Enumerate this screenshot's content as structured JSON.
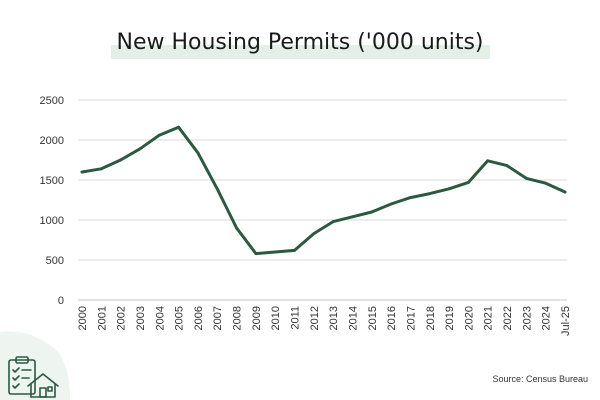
{
  "title": "New Housing Permits ('000 units)",
  "source": "Source: Census Bureau",
  "colors": {
    "line": "#2b5a41",
    "grid": "#d9d9d9",
    "title_highlight": "#e3efe7",
    "logo": "#2b5a41"
  },
  "icons": {
    "logo": "checklist-house-icon"
  },
  "chart_data": {
    "type": "line",
    "title": "New Housing Permits ('000 units)",
    "xlabel": "",
    "ylabel": "",
    "ylim": [
      0,
      2500
    ],
    "yticks": [
      0,
      500,
      1000,
      1500,
      2000,
      2500
    ],
    "grid": true,
    "categories": [
      "2000",
      "2001",
      "2002",
      "2003",
      "2004",
      "2005",
      "2006",
      "2007",
      "2008",
      "2009",
      "2010",
      "2011",
      "2012",
      "2013",
      "2014",
      "2015",
      "2016",
      "2017",
      "2018",
      "2019",
      "2020",
      "2021",
      "2022",
      "2023",
      "2024",
      "Jul-25"
    ],
    "series": [
      {
        "name": "",
        "values": [
          1600,
          1640,
          1750,
          1890,
          2060,
          2160,
          1840,
          1390,
          900,
          580,
          600,
          620,
          830,
          980,
          1040,
          1100,
          1200,
          1280,
          1330,
          1390,
          1470,
          1740,
          1680,
          1520,
          1460,
          1350
        ]
      }
    ]
  }
}
